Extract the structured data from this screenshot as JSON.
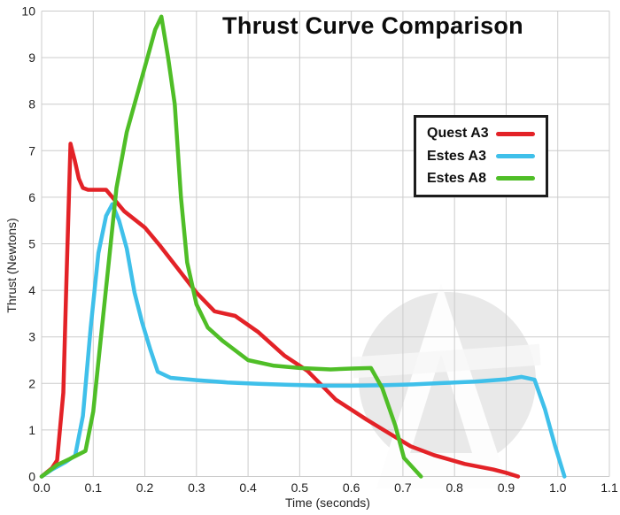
{
  "title": "Thrust Curve Comparison",
  "axes": {
    "x": {
      "label": "Time (seconds)",
      "ticks": [
        "0.0",
        "0.1",
        "0.2",
        "0.3",
        "0.4",
        "0.5",
        "0.6",
        "0.7",
        "0.8",
        "0.9",
        "1.0",
        "1.1"
      ],
      "min": 0,
      "max": 1.1
    },
    "y": {
      "label": "Thrust (Newtons)",
      "ticks": [
        "0",
        "1",
        "2",
        "3",
        "4",
        "5",
        "6",
        "7",
        "8",
        "9",
        "10"
      ],
      "min": 0,
      "max": 10
    }
  },
  "colors": {
    "quest_a3": "#e32227",
    "estes_a3": "#3fc0ea",
    "estes_a8": "#4fbe27",
    "grid": "#cccccc",
    "text": "#1f1f1f",
    "watermark_gray": "#e9e9e9"
  },
  "watermark": {
    "icon": "apogee-a-logo-watermark"
  },
  "chart_data": {
    "type": "line",
    "title": "Thrust Curve Comparison",
    "xlabel": "Time (seconds)",
    "ylabel": "Thrust (Newtons)",
    "xlim": [
      0,
      1.1
    ],
    "ylim": [
      0,
      10
    ],
    "grid": true,
    "legend_position": "upper right",
    "series": [
      {
        "name": "Quest A3",
        "color": "#e32227",
        "points": [
          [
            0,
            0
          ],
          [
            0.02,
            0.18
          ],
          [
            0.03,
            0.35
          ],
          [
            0.042,
            1.8
          ],
          [
            0.048,
            4.2
          ],
          [
            0.056,
            7.15
          ],
          [
            0.064,
            6.8
          ],
          [
            0.072,
            6.4
          ],
          [
            0.08,
            6.2
          ],
          [
            0.09,
            6.16
          ],
          [
            0.125,
            6.16
          ],
          [
            0.16,
            5.7
          ],
          [
            0.2,
            5.35
          ],
          [
            0.23,
            4.95
          ],
          [
            0.265,
            4.45
          ],
          [
            0.3,
            3.95
          ],
          [
            0.335,
            3.55
          ],
          [
            0.375,
            3.45
          ],
          [
            0.42,
            3.1
          ],
          [
            0.47,
            2.6
          ],
          [
            0.515,
            2.27
          ],
          [
            0.57,
            1.65
          ],
          [
            0.63,
            1.22
          ],
          [
            0.67,
            0.95
          ],
          [
            0.715,
            0.65
          ],
          [
            0.76,
            0.46
          ],
          [
            0.82,
            0.27
          ],
          [
            0.875,
            0.15
          ],
          [
            0.9,
            0.08
          ],
          [
            0.923,
            0
          ]
        ]
      },
      {
        "name": "Estes A3",
        "color": "#3fc0ea",
        "points": [
          [
            0,
            0
          ],
          [
            0.02,
            0.15
          ],
          [
            0.045,
            0.3
          ],
          [
            0.065,
            0.45
          ],
          [
            0.08,
            1.3
          ],
          [
            0.095,
            3.2
          ],
          [
            0.11,
            4.8
          ],
          [
            0.125,
            5.6
          ],
          [
            0.137,
            5.85
          ],
          [
            0.15,
            5.5
          ],
          [
            0.165,
            4.9
          ],
          [
            0.18,
            3.95
          ],
          [
            0.195,
            3.3
          ],
          [
            0.21,
            2.75
          ],
          [
            0.225,
            2.25
          ],
          [
            0.25,
            2.12
          ],
          [
            0.3,
            2.07
          ],
          [
            0.36,
            2.02
          ],
          [
            0.42,
            1.99
          ],
          [
            0.48,
            1.97
          ],
          [
            0.54,
            1.95
          ],
          [
            0.6,
            1.95
          ],
          [
            0.66,
            1.96
          ],
          [
            0.72,
            1.98
          ],
          [
            0.78,
            2.01
          ],
          [
            0.84,
            2.04
          ],
          [
            0.9,
            2.09
          ],
          [
            0.93,
            2.14
          ],
          [
            0.955,
            2.08
          ],
          [
            0.975,
            1.45
          ],
          [
            0.995,
            0.65
          ],
          [
            1.013,
            0
          ]
        ]
      },
      {
        "name": "Estes A8",
        "color": "#4fbe27",
        "points": [
          [
            0,
            0
          ],
          [
            0.03,
            0.25
          ],
          [
            0.055,
            0.38
          ],
          [
            0.085,
            0.55
          ],
          [
            0.1,
            1.4
          ],
          [
            0.115,
            3.0
          ],
          [
            0.13,
            4.6
          ],
          [
            0.145,
            6.2
          ],
          [
            0.165,
            7.4
          ],
          [
            0.185,
            8.2
          ],
          [
            0.205,
            9.0
          ],
          [
            0.22,
            9.6
          ],
          [
            0.232,
            9.88
          ],
          [
            0.245,
            9.0
          ],
          [
            0.258,
            8.0
          ],
          [
            0.27,
            6.0
          ],
          [
            0.282,
            4.6
          ],
          [
            0.3,
            3.7
          ],
          [
            0.322,
            3.2
          ],
          [
            0.35,
            2.92
          ],
          [
            0.4,
            2.5
          ],
          [
            0.45,
            2.38
          ],
          [
            0.5,
            2.33
          ],
          [
            0.56,
            2.3
          ],
          [
            0.6,
            2.32
          ],
          [
            0.638,
            2.33
          ],
          [
            0.66,
            1.9
          ],
          [
            0.685,
            1.1
          ],
          [
            0.702,
            0.4
          ],
          [
            0.735,
            0
          ]
        ]
      }
    ]
  }
}
